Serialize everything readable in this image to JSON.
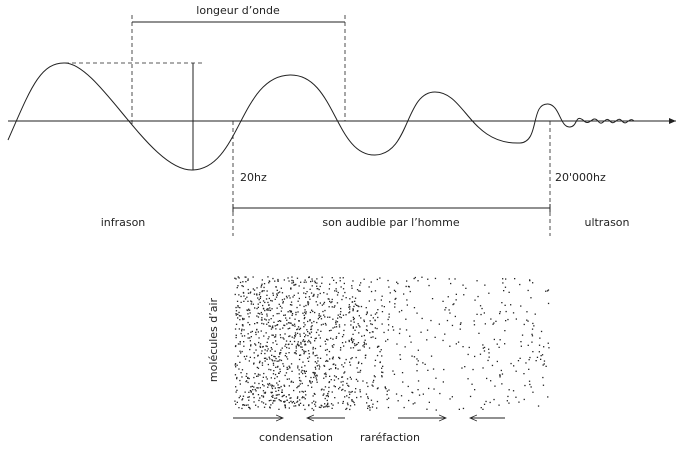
{
  "wavelength_label": "longeur d’onde",
  "frequency_labels": [
    "20hz",
    "20'000hz"
  ],
  "ranges": [
    "infrason",
    "son audible par l’homme",
    "ultrason"
  ],
  "molecules_label": "molécules d’air",
  "phases": [
    "condensation",
    "raréfaction"
  ]
}
